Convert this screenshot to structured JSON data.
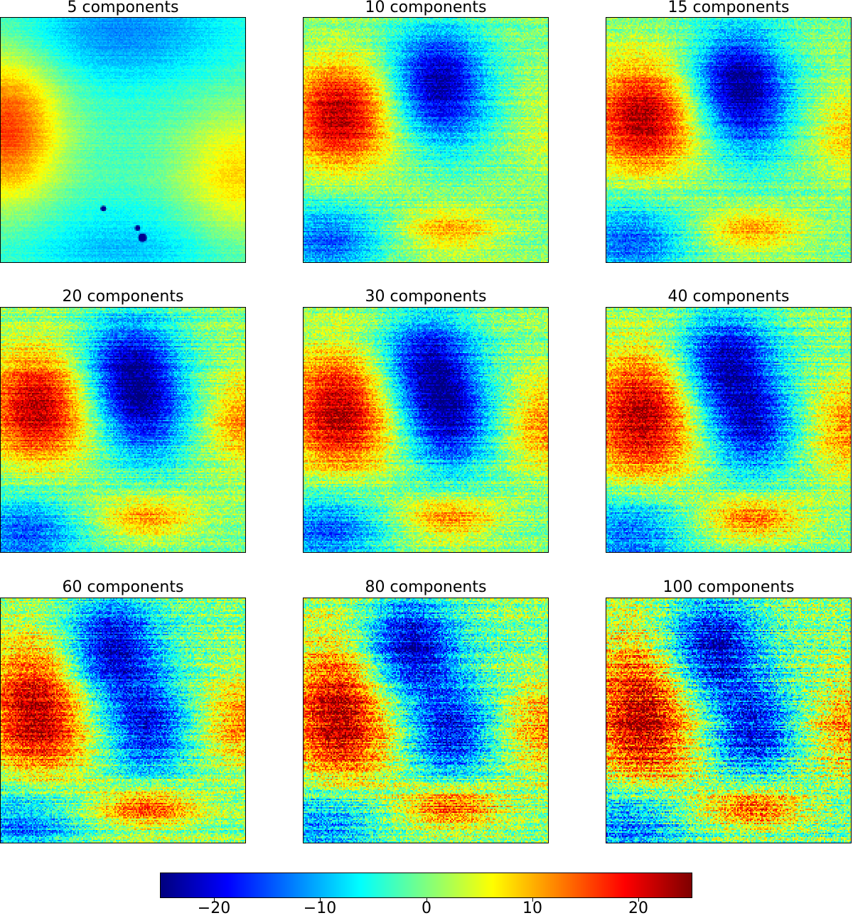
{
  "chart_data": {
    "type": "heatmap",
    "title": "",
    "colormap": "jet",
    "value_range": [
      -25,
      25
    ],
    "panels": [
      {
        "title": "5 components",
        "components": 5
      },
      {
        "title": "10 components",
        "components": 10
      },
      {
        "title": "15 components",
        "components": 15
      },
      {
        "title": "20 components",
        "components": 20
      },
      {
        "title": "30 components",
        "components": 30
      },
      {
        "title": "40 components",
        "components": 40
      },
      {
        "title": "60 components",
        "components": 60
      },
      {
        "title": "80 components",
        "components": 80
      },
      {
        "title": "100 components",
        "components": 100
      }
    ],
    "colorbar": {
      "ticks": [
        -20,
        -10,
        0,
        10,
        20
      ],
      "tick_labels": [
        "−20",
        "−10",
        "0",
        "10",
        "20"
      ]
    }
  }
}
